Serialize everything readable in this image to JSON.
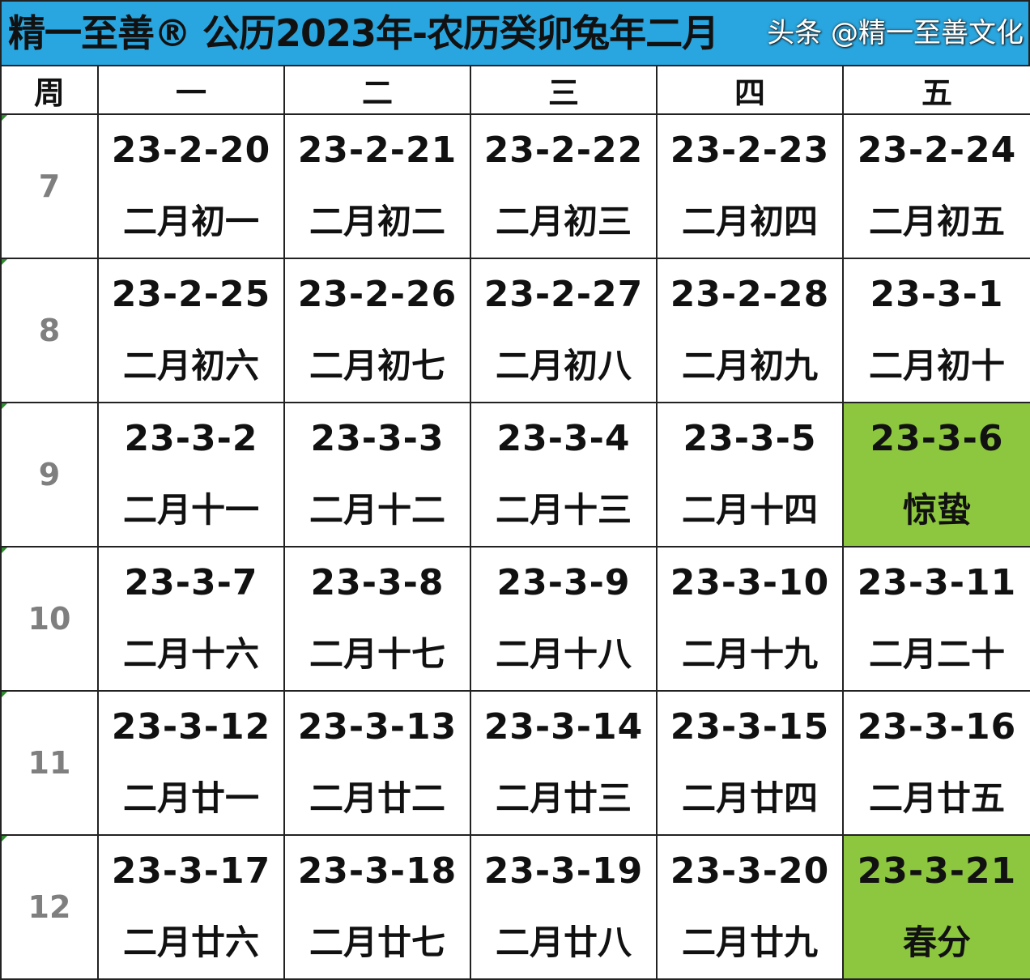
{
  "title": "精一至善® 公历2023年-农历癸卯兔年二月",
  "header": [
    "周",
    "一",
    "二",
    "三",
    "四",
    "五"
  ],
  "highlight_color": "#8dc63f",
  "title_bg_color": "#29a6df",
  "weeks": [
    {
      "week": "7",
      "days": [
        {
          "date": "23-2-20",
          "lunar": "二月初一"
        },
        {
          "date": "23-2-21",
          "lunar": "二月初二"
        },
        {
          "date": "23-2-22",
          "lunar": "二月初三"
        },
        {
          "date": "23-2-23",
          "lunar": "二月初四"
        },
        {
          "date": "23-2-24",
          "lunar": "二月初五"
        }
      ]
    },
    {
      "week": "8",
      "days": [
        {
          "date": "23-2-25",
          "lunar": "二月初六"
        },
        {
          "date": "23-2-26",
          "lunar": "二月初七"
        },
        {
          "date": "23-2-27",
          "lunar": "二月初八"
        },
        {
          "date": "23-2-28",
          "lunar": "二月初九"
        },
        {
          "date": "23-3-1",
          "lunar": "二月初十"
        }
      ]
    },
    {
      "week": "9",
      "days": [
        {
          "date": "23-3-2",
          "lunar": "二月十一"
        },
        {
          "date": "23-3-3",
          "lunar": "二月十二"
        },
        {
          "date": "23-3-4",
          "lunar": "二月十三"
        },
        {
          "date": "23-3-5",
          "lunar": "二月十四"
        },
        {
          "date": "23-3-6",
          "lunar": "惊蛰",
          "highlight": true
        }
      ]
    },
    {
      "week": "10",
      "days": [
        {
          "date": "23-3-7",
          "lunar": "二月十六"
        },
        {
          "date": "23-3-8",
          "lunar": "二月十七"
        },
        {
          "date": "23-3-9",
          "lunar": "二月十八"
        },
        {
          "date": "23-3-10",
          "lunar": "二月十九"
        },
        {
          "date": "23-3-11",
          "lunar": "二月二十"
        }
      ]
    },
    {
      "week": "11",
      "days": [
        {
          "date": "23-3-12",
          "lunar": "二月廿一"
        },
        {
          "date": "23-3-13",
          "lunar": "二月廿二"
        },
        {
          "date": "23-3-14",
          "lunar": "二月廿三"
        },
        {
          "date": "23-3-15",
          "lunar": "二月廿四"
        },
        {
          "date": "23-3-16",
          "lunar": "二月廿五"
        }
      ]
    },
    {
      "week": "12",
      "days": [
        {
          "date": "23-3-17",
          "lunar": "二月廿六"
        },
        {
          "date": "23-3-18",
          "lunar": "二月廿七"
        },
        {
          "date": "23-3-19",
          "lunar": "二月廿八"
        },
        {
          "date": "23-3-20",
          "lunar": "二月廿九"
        },
        {
          "date": "23-3-21",
          "lunar": "春分",
          "highlight": true
        }
      ]
    }
  ],
  "watermark": "头条 @精一至善文化"
}
